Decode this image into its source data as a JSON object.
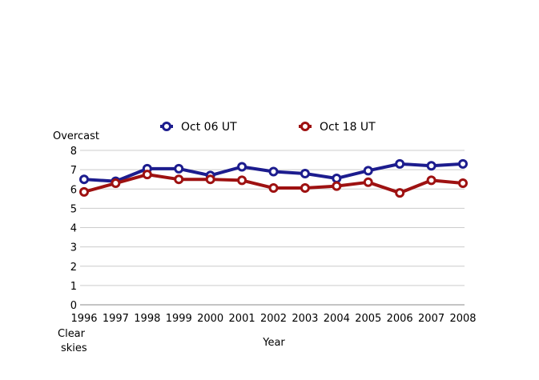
{
  "chart_data": {
    "type": "line",
    "title": "",
    "xlabel": "Year",
    "ylabel": "Overcast",
    "y_bottom_label": [
      "Clear",
      "skies"
    ],
    "x": [
      1996,
      1997,
      1998,
      1999,
      2000,
      2001,
      2002,
      2003,
      2004,
      2005,
      2006,
      2007,
      2008
    ],
    "ylim": [
      0,
      8
    ],
    "yticks": [
      0,
      1,
      2,
      3,
      4,
      5,
      6,
      7,
      8
    ],
    "grid": true,
    "legend_position": "top",
    "series": [
      {
        "name": "Oct 06 UT",
        "color": "#1c1c8e",
        "values": [
          6.5,
          6.4,
          7.05,
          7.05,
          6.7,
          7.15,
          6.9,
          6.8,
          6.55,
          6.95,
          7.3,
          7.2,
          7.3
        ]
      },
      {
        "name": "Oct 18 UT",
        "color": "#9e1111",
        "values": [
          5.85,
          6.3,
          6.75,
          6.5,
          6.5,
          6.45,
          6.05,
          6.05,
          6.15,
          6.35,
          5.8,
          6.45,
          6.3
        ]
      }
    ]
  }
}
